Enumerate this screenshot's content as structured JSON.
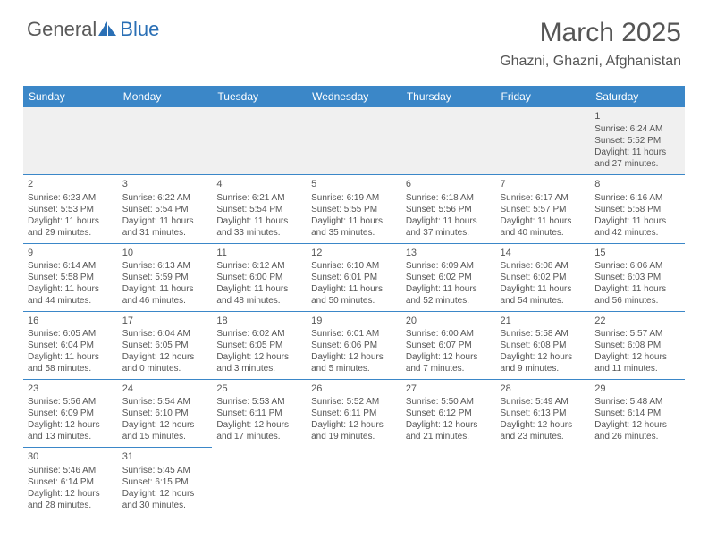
{
  "logo": {
    "part1": "General",
    "part2": "Blue"
  },
  "title": "March 2025",
  "location": "Ghazni, Ghazni, Afghanistan",
  "colors": {
    "header_bg": "#3b87c8",
    "header_text": "#ffffff",
    "border": "#3b87c8",
    "text": "#555555",
    "empty_bg": "#f0f0f0",
    "logo_blue": "#2a6fb5"
  },
  "daynames": [
    "Sunday",
    "Monday",
    "Tuesday",
    "Wednesday",
    "Thursday",
    "Friday",
    "Saturday"
  ],
  "weeks": [
    [
      null,
      null,
      null,
      null,
      null,
      null,
      {
        "d": "1",
        "sr": "Sunrise: 6:24 AM",
        "ss": "Sunset: 5:52 PM",
        "dl1": "Daylight: 11 hours",
        "dl2": "and 27 minutes."
      }
    ],
    [
      {
        "d": "2",
        "sr": "Sunrise: 6:23 AM",
        "ss": "Sunset: 5:53 PM",
        "dl1": "Daylight: 11 hours",
        "dl2": "and 29 minutes."
      },
      {
        "d": "3",
        "sr": "Sunrise: 6:22 AM",
        "ss": "Sunset: 5:54 PM",
        "dl1": "Daylight: 11 hours",
        "dl2": "and 31 minutes."
      },
      {
        "d": "4",
        "sr": "Sunrise: 6:21 AM",
        "ss": "Sunset: 5:54 PM",
        "dl1": "Daylight: 11 hours",
        "dl2": "and 33 minutes."
      },
      {
        "d": "5",
        "sr": "Sunrise: 6:19 AM",
        "ss": "Sunset: 5:55 PM",
        "dl1": "Daylight: 11 hours",
        "dl2": "and 35 minutes."
      },
      {
        "d": "6",
        "sr": "Sunrise: 6:18 AM",
        "ss": "Sunset: 5:56 PM",
        "dl1": "Daylight: 11 hours",
        "dl2": "and 37 minutes."
      },
      {
        "d": "7",
        "sr": "Sunrise: 6:17 AM",
        "ss": "Sunset: 5:57 PM",
        "dl1": "Daylight: 11 hours",
        "dl2": "and 40 minutes."
      },
      {
        "d": "8",
        "sr": "Sunrise: 6:16 AM",
        "ss": "Sunset: 5:58 PM",
        "dl1": "Daylight: 11 hours",
        "dl2": "and 42 minutes."
      }
    ],
    [
      {
        "d": "9",
        "sr": "Sunrise: 6:14 AM",
        "ss": "Sunset: 5:58 PM",
        "dl1": "Daylight: 11 hours",
        "dl2": "and 44 minutes."
      },
      {
        "d": "10",
        "sr": "Sunrise: 6:13 AM",
        "ss": "Sunset: 5:59 PM",
        "dl1": "Daylight: 11 hours",
        "dl2": "and 46 minutes."
      },
      {
        "d": "11",
        "sr": "Sunrise: 6:12 AM",
        "ss": "Sunset: 6:00 PM",
        "dl1": "Daylight: 11 hours",
        "dl2": "and 48 minutes."
      },
      {
        "d": "12",
        "sr": "Sunrise: 6:10 AM",
        "ss": "Sunset: 6:01 PM",
        "dl1": "Daylight: 11 hours",
        "dl2": "and 50 minutes."
      },
      {
        "d": "13",
        "sr": "Sunrise: 6:09 AM",
        "ss": "Sunset: 6:02 PM",
        "dl1": "Daylight: 11 hours",
        "dl2": "and 52 minutes."
      },
      {
        "d": "14",
        "sr": "Sunrise: 6:08 AM",
        "ss": "Sunset: 6:02 PM",
        "dl1": "Daylight: 11 hours",
        "dl2": "and 54 minutes."
      },
      {
        "d": "15",
        "sr": "Sunrise: 6:06 AM",
        "ss": "Sunset: 6:03 PM",
        "dl1": "Daylight: 11 hours",
        "dl2": "and 56 minutes."
      }
    ],
    [
      {
        "d": "16",
        "sr": "Sunrise: 6:05 AM",
        "ss": "Sunset: 6:04 PM",
        "dl1": "Daylight: 11 hours",
        "dl2": "and 58 minutes."
      },
      {
        "d": "17",
        "sr": "Sunrise: 6:04 AM",
        "ss": "Sunset: 6:05 PM",
        "dl1": "Daylight: 12 hours",
        "dl2": "and 0 minutes."
      },
      {
        "d": "18",
        "sr": "Sunrise: 6:02 AM",
        "ss": "Sunset: 6:05 PM",
        "dl1": "Daylight: 12 hours",
        "dl2": "and 3 minutes."
      },
      {
        "d": "19",
        "sr": "Sunrise: 6:01 AM",
        "ss": "Sunset: 6:06 PM",
        "dl1": "Daylight: 12 hours",
        "dl2": "and 5 minutes."
      },
      {
        "d": "20",
        "sr": "Sunrise: 6:00 AM",
        "ss": "Sunset: 6:07 PM",
        "dl1": "Daylight: 12 hours",
        "dl2": "and 7 minutes."
      },
      {
        "d": "21",
        "sr": "Sunrise: 5:58 AM",
        "ss": "Sunset: 6:08 PM",
        "dl1": "Daylight: 12 hours",
        "dl2": "and 9 minutes."
      },
      {
        "d": "22",
        "sr": "Sunrise: 5:57 AM",
        "ss": "Sunset: 6:08 PM",
        "dl1": "Daylight: 12 hours",
        "dl2": "and 11 minutes."
      }
    ],
    [
      {
        "d": "23",
        "sr": "Sunrise: 5:56 AM",
        "ss": "Sunset: 6:09 PM",
        "dl1": "Daylight: 12 hours",
        "dl2": "and 13 minutes."
      },
      {
        "d": "24",
        "sr": "Sunrise: 5:54 AM",
        "ss": "Sunset: 6:10 PM",
        "dl1": "Daylight: 12 hours",
        "dl2": "and 15 minutes."
      },
      {
        "d": "25",
        "sr": "Sunrise: 5:53 AM",
        "ss": "Sunset: 6:11 PM",
        "dl1": "Daylight: 12 hours",
        "dl2": "and 17 minutes."
      },
      {
        "d": "26",
        "sr": "Sunrise: 5:52 AM",
        "ss": "Sunset: 6:11 PM",
        "dl1": "Daylight: 12 hours",
        "dl2": "and 19 minutes."
      },
      {
        "d": "27",
        "sr": "Sunrise: 5:50 AM",
        "ss": "Sunset: 6:12 PM",
        "dl1": "Daylight: 12 hours",
        "dl2": "and 21 minutes."
      },
      {
        "d": "28",
        "sr": "Sunrise: 5:49 AM",
        "ss": "Sunset: 6:13 PM",
        "dl1": "Daylight: 12 hours",
        "dl2": "and 23 minutes."
      },
      {
        "d": "29",
        "sr": "Sunrise: 5:48 AM",
        "ss": "Sunset: 6:14 PM",
        "dl1": "Daylight: 12 hours",
        "dl2": "and 26 minutes."
      }
    ],
    [
      {
        "d": "30",
        "sr": "Sunrise: 5:46 AM",
        "ss": "Sunset: 6:14 PM",
        "dl1": "Daylight: 12 hours",
        "dl2": "and 28 minutes."
      },
      {
        "d": "31",
        "sr": "Sunrise: 5:45 AM",
        "ss": "Sunset: 6:15 PM",
        "dl1": "Daylight: 12 hours",
        "dl2": "and 30 minutes."
      },
      null,
      null,
      null,
      null,
      null
    ]
  ]
}
